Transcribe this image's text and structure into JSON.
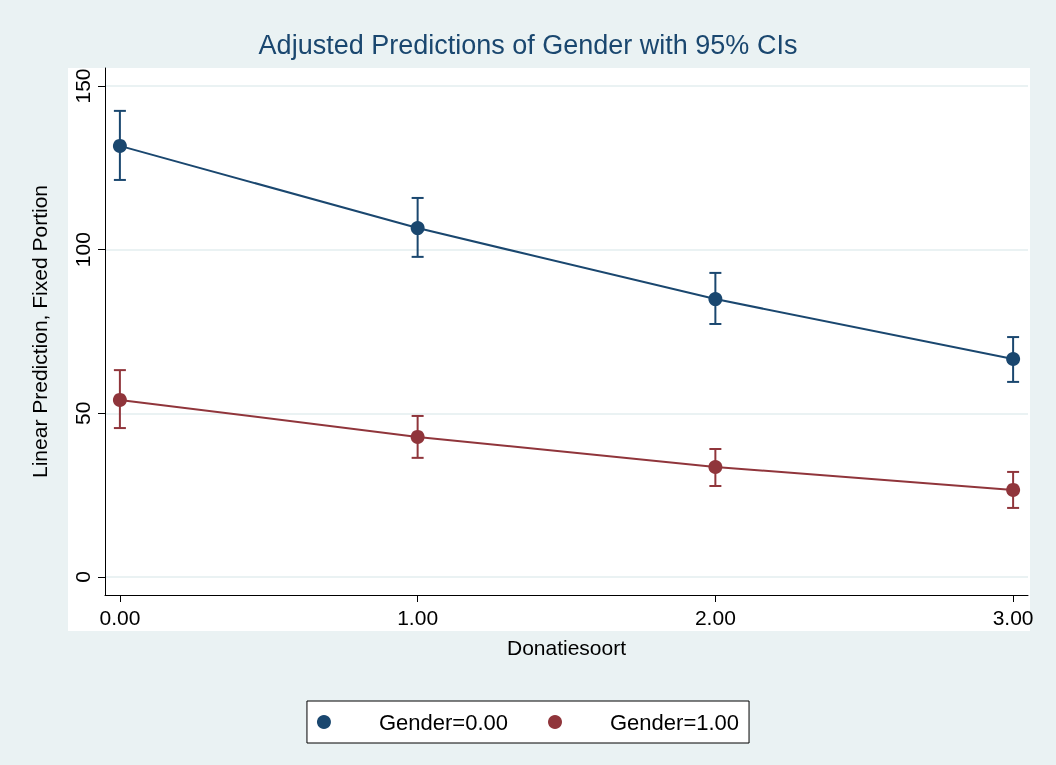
{
  "chart_data": {
    "type": "line",
    "title": "Adjusted Predictions of Gender with 95% CIs",
    "xlabel": "Donatiesoort",
    "ylabel": "Linear Prediction, Fixed Portion",
    "x": [
      0,
      1,
      2,
      3
    ],
    "series": [
      {
        "name": "Gender=0.00",
        "color": "#1a476f",
        "values": [
          131.7,
          106.6,
          84.9,
          66.6
        ],
        "errors": [
          [
            121.3,
            142.4
          ],
          [
            97.8,
            115.8
          ],
          [
            77.3,
            92.9
          ],
          [
            59.6,
            73.3
          ]
        ]
      },
      {
        "name": "Gender=1.00",
        "color": "#90353b",
        "values": [
          54.1,
          42.8,
          33.6,
          26.6
        ],
        "errors": [
          [
            45.5,
            63.2
          ],
          [
            36.4,
            49.2
          ],
          [
            27.8,
            39.1
          ],
          [
            21.1,
            32.1
          ]
        ]
      }
    ],
    "xlim": [
      -0.05,
      3.05
    ],
    "xticks": [
      {
        "value": 0,
        "label": "0.00"
      },
      {
        "value": 1,
        "label": "1.00"
      },
      {
        "value": 2,
        "label": "2.00"
      },
      {
        "value": 3,
        "label": "3.00"
      }
    ],
    "ylim": [
      -5.5,
      155.5
    ],
    "yticks": [
      0,
      50,
      100,
      150
    ],
    "grid": "y",
    "legend": "bottom",
    "marker": "circle",
    "line_style": "solid"
  }
}
